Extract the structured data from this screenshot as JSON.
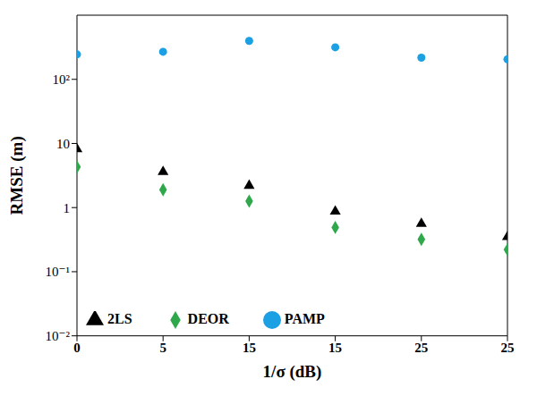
{
  "chart_data": {
    "type": "scatter",
    "x_label": "1/σ (dB)",
    "y_label": "RMSE (m)",
    "categories": [
      "0",
      "5",
      "15",
      "15",
      "25",
      "25"
    ],
    "series": [
      {
        "name": "2LS",
        "color": "#000000",
        "marker": "triangle",
        "values": [
          8.2,
          3.6,
          2.2,
          0.87,
          0.56,
          0.35
        ]
      },
      {
        "name": "PAMP",
        "color": "#1ca0e4",
        "marker": "circle",
        "values": [
          245,
          269,
          398,
          316,
          218,
          205
        ]
      },
      {
        "name": "DEOR",
        "color": "#2ea84a",
        "marker": "diamond",
        "values": [
          4.3,
          1.9,
          1.26,
          0.49,
          0.32,
          0.22
        ]
      }
    ],
    "ylim": [
      0.01,
      1000
    ],
    "yticks": [
      {
        "value": 0.01,
        "label": "10⁻²"
      },
      {
        "value": 0.1,
        "label": "10⁻¹"
      },
      1,
      10,
      {
        "value": 100,
        "label": "10²"
      }
    ],
    "log": "y",
    "legend": "lower left"
  }
}
